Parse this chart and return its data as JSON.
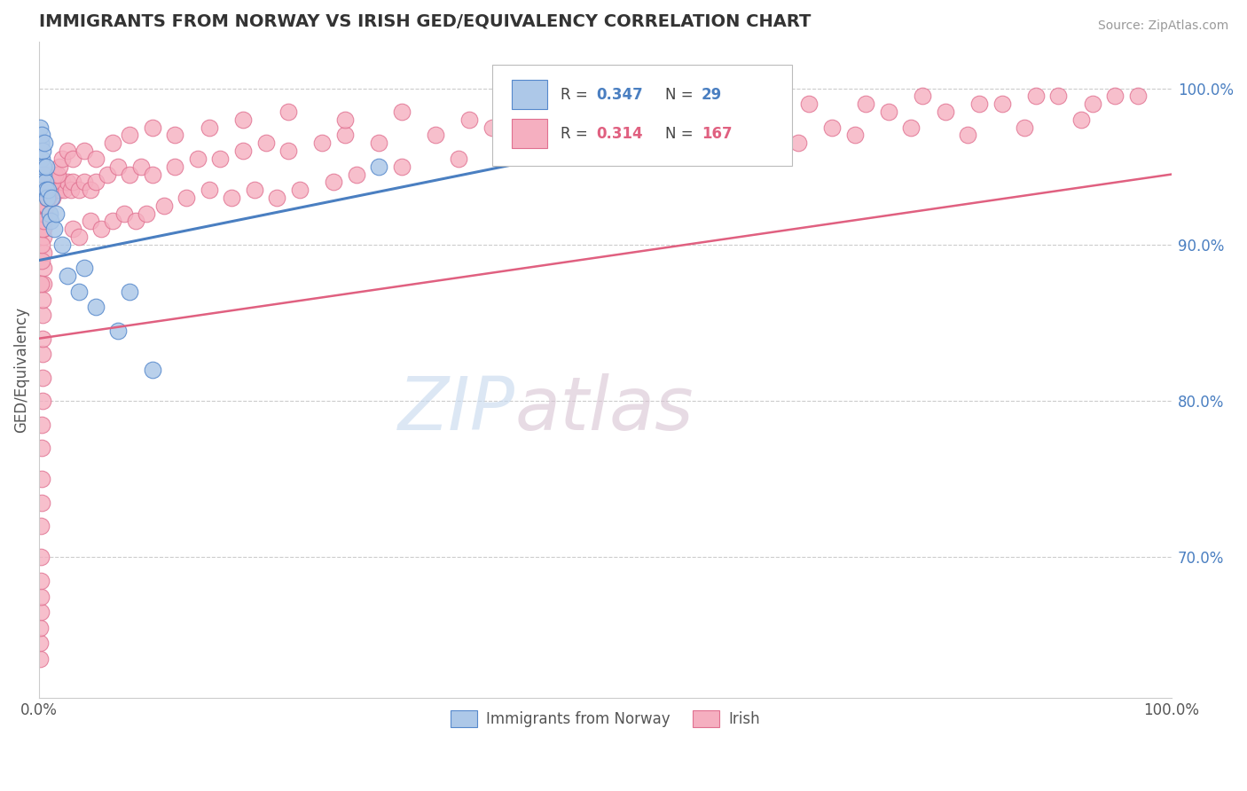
{
  "title": "IMMIGRANTS FROM NORWAY VS IRISH GED/EQUIVALENCY CORRELATION CHART",
  "source": "Source: ZipAtlas.com",
  "ylabel": "GED/Equivalency",
  "right_yticks": [
    70.0,
    80.0,
    90.0,
    100.0
  ],
  "legend_blue_label": "Immigrants from Norway",
  "legend_pink_label": "Irish",
  "R_blue": 0.347,
  "N_blue": 29,
  "R_pink": 0.314,
  "N_pink": 167,
  "blue_color": "#adc8e8",
  "pink_color": "#f5afc0",
  "blue_line_color": "#4a7fc1",
  "pink_line_color": "#e06080",
  "blue_edge_color": "#5588cc",
  "pink_edge_color": "#e07090",
  "norway_x": [
    0.1,
    0.15,
    0.2,
    0.25,
    0.3,
    0.35,
    0.4,
    0.5,
    0.55,
    0.6,
    0.65,
    0.7,
    0.8,
    0.9,
    1.0,
    1.1,
    1.3,
    1.5,
    2.0,
    2.5,
    3.5,
    4.0,
    5.0,
    7.0,
    8.0,
    10.0,
    30.0,
    50.0,
    65.0
  ],
  "norway_y": [
    97.5,
    96.5,
    97.0,
    95.5,
    96.0,
    94.5,
    95.0,
    96.5,
    94.0,
    93.5,
    95.0,
    93.0,
    93.5,
    92.0,
    91.5,
    93.0,
    91.0,
    92.0,
    90.0,
    88.0,
    87.0,
    88.5,
    86.0,
    84.5,
    87.0,
    82.0,
    95.0,
    97.0,
    98.5
  ],
  "irish_x": [
    0.05,
    0.08,
    0.1,
    0.12,
    0.13,
    0.15,
    0.17,
    0.18,
    0.2,
    0.22,
    0.23,
    0.25,
    0.27,
    0.28,
    0.3,
    0.31,
    0.32,
    0.33,
    0.35,
    0.36,
    0.38,
    0.4,
    0.42,
    0.43,
    0.45,
    0.47,
    0.5,
    0.52,
    0.55,
    0.57,
    0.6,
    0.62,
    0.65,
    0.68,
    0.7,
    0.72,
    0.75,
    0.78,
    0.8,
    0.85,
    0.9,
    0.95,
    1.0,
    1.05,
    1.1,
    1.15,
    1.2,
    1.3,
    1.4,
    1.5,
    1.6,
    1.7,
    1.8,
    2.0,
    2.2,
    2.5,
    2.8,
    3.0,
    3.5,
    4.0,
    4.5,
    5.0,
    6.0,
    7.0,
    8.0,
    9.0,
    10.0,
    12.0,
    14.0,
    16.0,
    18.0,
    20.0,
    22.0,
    25.0,
    27.0,
    30.0,
    35.0,
    40.0,
    45.0,
    50.0,
    55.0,
    60.0,
    65.0,
    70.0,
    75.0,
    80.0,
    85.0,
    90.0,
    95.0,
    3.0,
    3.5,
    4.5,
    5.5,
    6.5,
    7.5,
    8.5,
    9.5,
    11.0,
    13.0,
    15.0,
    17.0,
    19.0,
    21.0,
    23.0,
    26.0,
    28.0,
    32.0,
    37.0,
    42.0,
    47.0,
    52.0,
    57.0,
    62.0,
    67.0,
    72.0,
    77.0,
    82.0,
    87.0,
    92.0,
    0.15,
    0.2,
    0.25,
    0.3,
    0.35,
    0.4,
    0.45,
    0.5,
    0.55,
    0.6,
    0.65,
    0.7,
    0.75,
    0.8,
    0.9,
    1.0,
    1.1,
    1.2,
    1.4,
    1.6,
    1.8,
    2.0,
    2.5,
    3.0,
    4.0,
    5.0,
    6.5,
    8.0,
    10.0,
    12.0,
    15.0,
    18.0,
    22.0,
    27.0,
    32.0,
    38.0,
    43.0,
    48.0,
    53.0,
    58.0,
    63.0,
    68.0,
    73.0,
    78.0,
    83.0,
    88.0,
    93.0,
    97.0
  ],
  "irish_y": [
    63.5,
    64.5,
    65.5,
    66.5,
    67.5,
    68.5,
    70.0,
    72.0,
    73.5,
    75.0,
    77.0,
    78.5,
    80.0,
    81.5,
    83.0,
    84.0,
    85.5,
    86.5,
    87.5,
    88.5,
    89.5,
    90.5,
    91.0,
    91.5,
    92.0,
    92.5,
    93.0,
    93.5,
    93.0,
    92.5,
    93.5,
    94.0,
    93.5,
    94.5,
    93.0,
    94.0,
    93.5,
    94.5,
    93.0,
    93.5,
    94.0,
    93.5,
    94.0,
    93.5,
    94.0,
    93.0,
    93.5,
    94.0,
    93.5,
    94.0,
    93.5,
    94.0,
    93.5,
    94.0,
    93.5,
    94.0,
    93.5,
    94.0,
    93.5,
    94.0,
    93.5,
    94.0,
    94.5,
    95.0,
    94.5,
    95.0,
    94.5,
    95.0,
    95.5,
    95.5,
    96.0,
    96.5,
    96.0,
    96.5,
    97.0,
    96.5,
    97.0,
    97.5,
    97.5,
    98.0,
    98.0,
    98.5,
    98.0,
    97.5,
    98.5,
    98.5,
    99.0,
    99.5,
    99.5,
    91.0,
    90.5,
    91.5,
    91.0,
    91.5,
    92.0,
    91.5,
    92.0,
    92.5,
    93.0,
    93.5,
    93.0,
    93.5,
    93.0,
    93.5,
    94.0,
    94.5,
    95.0,
    95.5,
    96.0,
    96.5,
    96.0,
    96.5,
    96.0,
    96.5,
    97.0,
    97.5,
    97.0,
    97.5,
    98.0,
    87.5,
    89.0,
    90.0,
    91.0,
    92.0,
    91.5,
    92.5,
    93.0,
    92.5,
    93.0,
    92.5,
    93.0,
    93.5,
    93.0,
    93.5,
    94.0,
    94.5,
    94.0,
    94.5,
    94.5,
    95.0,
    95.5,
    96.0,
    95.5,
    96.0,
    95.5,
    96.5,
    97.0,
    97.5,
    97.0,
    97.5,
    98.0,
    98.5,
    98.0,
    98.5,
    98.0,
    98.5,
    98.0,
    98.5,
    98.0,
    98.5,
    99.0,
    99.0,
    99.5,
    99.0,
    99.5,
    99.0,
    99.5
  ],
  "ylim_low": 61,
  "ylim_high": 103,
  "xlim_low": 0,
  "xlim_high": 100,
  "grid_color": "#cccccc",
  "watermark_zip_color": "#c5d8ee",
  "watermark_atlas_color": "#d4bece"
}
